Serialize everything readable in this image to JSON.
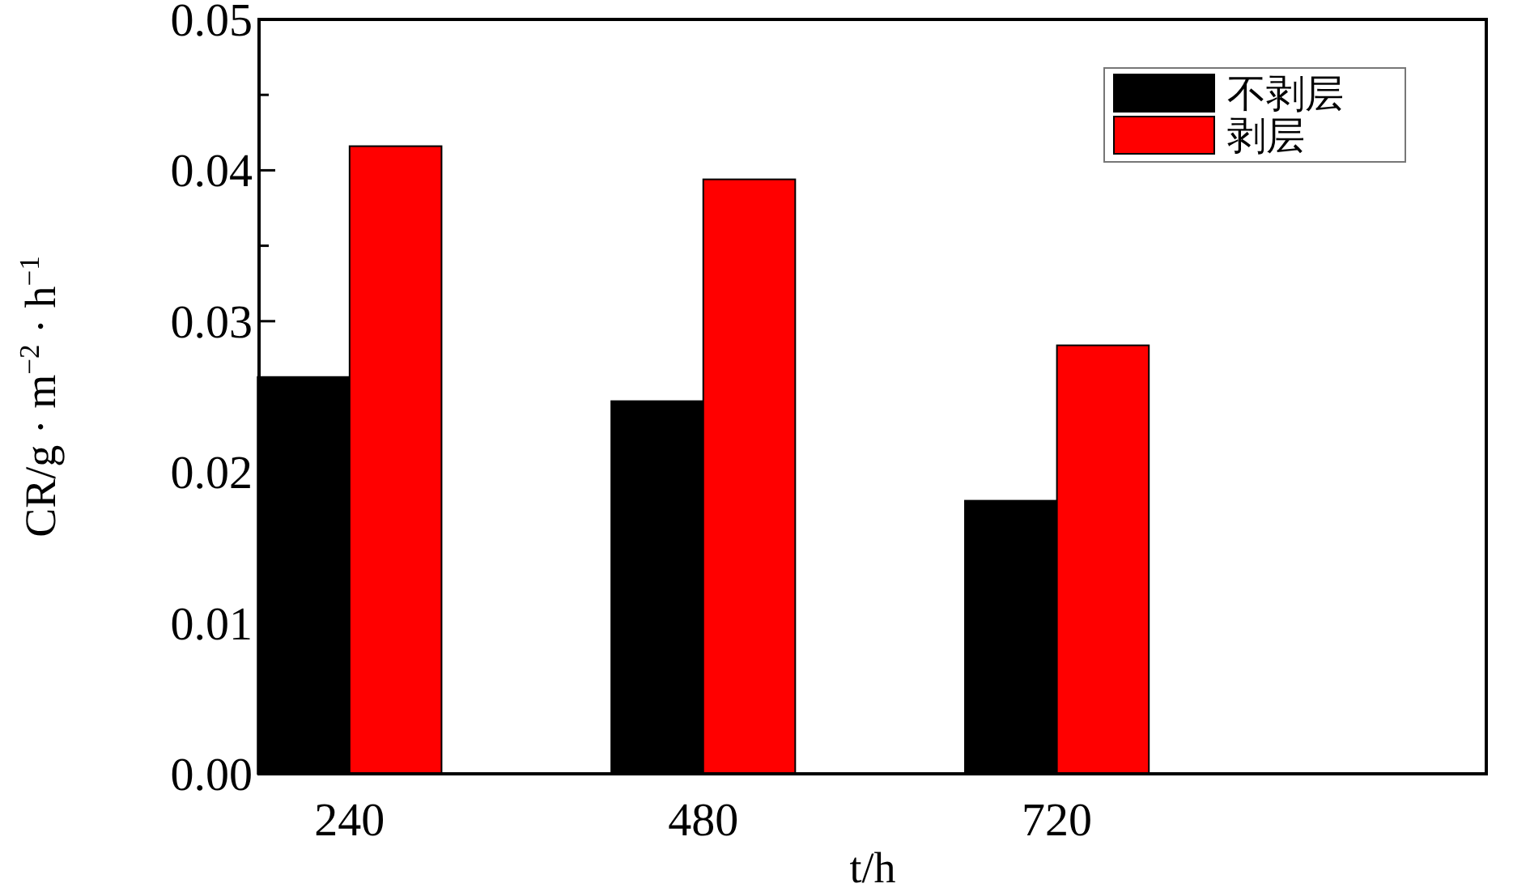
{
  "chart_data": {
    "type": "bar",
    "xlabel": "t/h",
    "ylabel": "CR/g · m$^{−2}$ · h$^{−1}$",
    "categories": [
      "240",
      "480",
      "720"
    ],
    "series": [
      {
        "name": "不剥层",
        "color": "#000000",
        "values": [
          0.0263,
          0.0247,
          0.0181
        ]
      },
      {
        "name": "剥层",
        "color": "#ff0000",
        "values": [
          0.0416,
          0.0394,
          0.0284
        ]
      }
    ],
    "ylim": [
      0,
      0.05
    ],
    "yticks": [
      {
        "value": 0,
        "label": "0.00"
      },
      {
        "value": 0.005,
        "label": null
      },
      {
        "value": 0.01,
        "label": "0.01"
      },
      {
        "value": 0.015,
        "label": null
      },
      {
        "value": 0.02,
        "label": "0.02"
      },
      {
        "value": 0.025,
        "label": null
      },
      {
        "value": 0.03,
        "label": "0.03"
      },
      {
        "value": 0.035,
        "label": null
      },
      {
        "value": 0.04,
        "label": "0.04"
      },
      {
        "value": 0.045,
        "label": null
      },
      {
        "value": 0.05,
        "label": "0.05"
      }
    ],
    "grid": false,
    "legend": "top right"
  }
}
